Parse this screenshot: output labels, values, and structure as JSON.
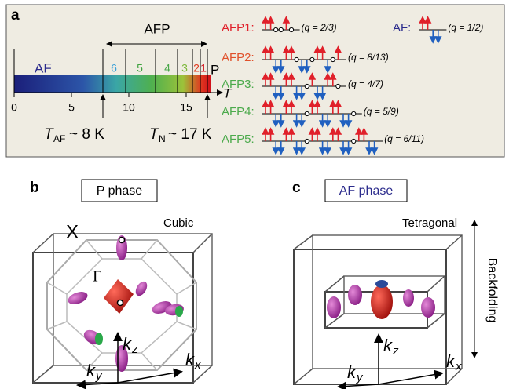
{
  "panel_a": {
    "label": "a",
    "afp_label": "AFP",
    "af_label": "AF",
    "p_label": "P",
    "t_label": "T",
    "axis_ticks": [
      0,
      5,
      10,
      15
    ],
    "phase_numbers": [
      "6",
      "5",
      "4",
      "3",
      "2",
      "1"
    ],
    "t_af": {
      "symbol": "T",
      "sub": "AF",
      "rest": "~ 8 K"
    },
    "t_n": {
      "symbol": "T",
      "sub": "N",
      "rest": "~ 17 K"
    },
    "rows": [
      {
        "name": "AFP1:",
        "q": "(q = 2/3)"
      },
      {
        "name": "AFP2:",
        "q": "(q = 8/13)"
      },
      {
        "name": "AFP3:",
        "q": "(q = 4/7)"
      },
      {
        "name": "AFP4:",
        "q": "(q = 5/9)"
      },
      {
        "name": "AFP5:",
        "q": "(q = 6/11)"
      }
    ],
    "af_row": {
      "name": "AF:",
      "q": "(q = 1/2)"
    }
  },
  "panel_b": {
    "label": "b",
    "phase": "P phase",
    "lattice": "Cubic",
    "x_point": "X",
    "gamma": "Γ",
    "axes": [
      {
        "main": "k",
        "sub": "z"
      },
      {
        "main": "k",
        "sub": "y"
      },
      {
        "main": "k",
        "sub": "x"
      }
    ]
  },
  "panel_c": {
    "label": "c",
    "phase": "AF phase",
    "lattice": "Tetragonal",
    "note": "Backfolding",
    "axes": [
      {
        "main": "k",
        "sub": "z"
      },
      {
        "main": "k",
        "sub": "y"
      },
      {
        "main": "k",
        "sub": "x"
      }
    ]
  }
}
